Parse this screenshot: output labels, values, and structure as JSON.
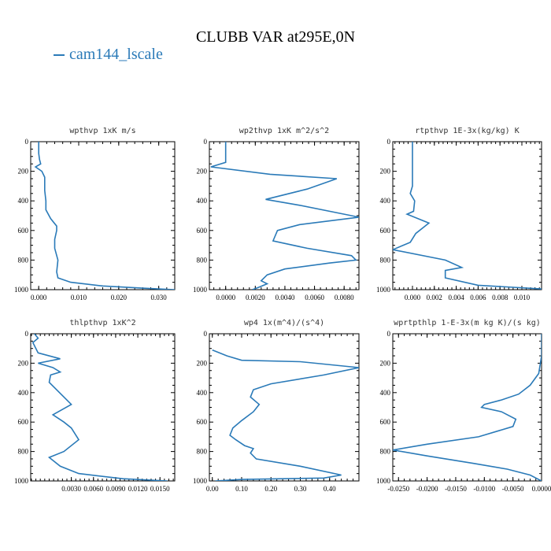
{
  "title": "CLUBB VAR at295E,0N",
  "legend": {
    "label": "cam144_lscale",
    "color": "#2a7ab8"
  },
  "chart_data": [
    {
      "type": "line",
      "title": "wpthvp  1xK m/s",
      "xlim": [
        -0.002,
        0.034
      ],
      "ylim": [
        1000,
        0
      ],
      "xticks": [
        0,
        0.01,
        0.02,
        0.03
      ],
      "xtick_labels": [
        "0.000",
        "0.010",
        "0.020",
        "0.030"
      ],
      "yticks": [
        0,
        200,
        400,
        600,
        800,
        1000
      ],
      "ytick_labels": [
        "0",
        "200",
        "400",
        "600",
        "800",
        "1000"
      ],
      "series": [
        {
          "x": [
            0,
            0,
            0.0002,
            0.0005,
            -0.0008,
            0.0008,
            0.0015,
            0.0015,
            0.0018,
            0.0018,
            0.003,
            0.0045,
            0.0045,
            0.004,
            0.004,
            0.0048,
            0.0045,
            0.0048,
            0.008,
            0.016,
            0.026,
            0.034
          ],
          "y": [
            0,
            80,
            120,
            150,
            170,
            200,
            240,
            330,
            400,
            460,
            520,
            570,
            600,
            660,
            720,
            800,
            880,
            920,
            950,
            975,
            990,
            1000
          ]
        }
      ]
    },
    {
      "type": "line",
      "title": "wp2thvp  1xK m^2/s^2",
      "xlim": [
        -0.0011,
        0.009
      ],
      "ylim": [
        1000,
        0
      ],
      "xticks": [
        0,
        0.002,
        0.004,
        0.006,
        0.008
      ],
      "xtick_labels": [
        "0.0000",
        "0.0020",
        "0.0040",
        "0.0060",
        "0.0080"
      ],
      "yticks": [
        0,
        200,
        400,
        600,
        800,
        1000
      ],
      "ytick_labels": [
        "0",
        "200",
        "400",
        "600",
        "800",
        "1000"
      ],
      "series": [
        {
          "x": [
            0,
            0,
            -0.001,
            0.003,
            0.0075,
            0.0055,
            0.0027,
            0.005,
            0.009,
            0.005,
            0.0035,
            0.0032,
            0.0055,
            0.0085,
            0.0088,
            0.007,
            0.004,
            0.0028,
            0.0024,
            0.0028,
            0.0022,
            0.0018
          ],
          "y": [
            0,
            140,
            170,
            220,
            250,
            320,
            390,
            430,
            510,
            560,
            600,
            670,
            720,
            770,
            800,
            820,
            860,
            900,
            940,
            960,
            985,
            1000
          ]
        }
      ]
    },
    {
      "type": "line",
      "title": "rtpthvp  1E-3x(kg/kg) K",
      "xlim": [
        -0.0018,
        0.0118
      ],
      "ylim": [
        1000,
        0
      ],
      "xticks": [
        0,
        0.002,
        0.004,
        0.006,
        0.008,
        0.01
      ],
      "xtick_labels": [
        "0.000",
        "0.002",
        "0.004",
        "0.006",
        "0.008",
        "0.010"
      ],
      "yticks": [
        0,
        200,
        400,
        600,
        800,
        1000
      ],
      "ytick_labels": [
        "0",
        "200",
        "400",
        "600",
        "800",
        "1000"
      ],
      "series": [
        {
          "x": [
            0,
            0,
            0,
            -0.0002,
            0.0002,
            0.0001,
            -0.0005,
            0.0015,
            0.0003,
            -0.0002,
            -0.0018,
            0.003,
            0.0045,
            0.003,
            0.003,
            0.006,
            0.0118
          ],
          "y": [
            0,
            150,
            300,
            350,
            400,
            470,
            490,
            550,
            620,
            680,
            730,
            800,
            850,
            870,
            920,
            970,
            995
          ]
        }
      ]
    },
    {
      "type": "line",
      "title": "thlpthvp  1xK^2",
      "xlim": [
        -0.0025,
        0.017
      ],
      "ylim": [
        1000,
        0
      ],
      "xticks": [
        0.003,
        0.006,
        0.009,
        0.012,
        0.015
      ],
      "xtick_labels": [
        "0.0030",
        "0.0060",
        "0.0090",
        "0.0120",
        "0.0150"
      ],
      "yticks": [
        0,
        200,
        400,
        600,
        800,
        1000
      ],
      "ytick_labels": [
        "0",
        "200",
        "400",
        "600",
        "800",
        "1000"
      ],
      "series": [
        {
          "x": [
            -0.002,
            -0.0015,
            -0.0022,
            -0.0015,
            0.0015,
            -0.0015,
            0.0005,
            0.0015,
            0.0002,
            0,
            0.003,
            0.0005,
            0.002,
            0.003,
            0.004,
            0.002,
            0,
            0.0015,
            0.004,
            0.01,
            0.016
          ],
          "y": [
            0,
            30,
            60,
            130,
            170,
            200,
            230,
            260,
            280,
            330,
            480,
            550,
            600,
            640,
            720,
            800,
            840,
            900,
            950,
            985,
            1000
          ]
        }
      ]
    },
    {
      "type": "line",
      "title": "wp4  1x(m^4)/(s^4)",
      "xlim": [
        -0.01,
        0.5
      ],
      "ylim": [
        1000,
        0
      ],
      "xticks": [
        0,
        0.1,
        0.2,
        0.3,
        0.4
      ],
      "xtick_labels": [
        "0.00",
        "0.10",
        "0.20",
        "0.30",
        "0.40"
      ],
      "yticks": [
        0,
        200,
        400,
        600,
        800,
        1000
      ],
      "ytick_labels": [
        "0",
        "200",
        "400",
        "600",
        "800",
        "1000"
      ],
      "series": [
        {
          "x": [
            0,
            0.05,
            0.1,
            0.3,
            0.5,
            0.38,
            0.2,
            0.14,
            0.13,
            0.16,
            0.14,
            0.1,
            0.07,
            0.06,
            0.08,
            0.11,
            0.14,
            0.13,
            0.15,
            0.3,
            0.44,
            0.38,
            0.1,
            0.01
          ],
          "y": [
            110,
            150,
            180,
            190,
            230,
            280,
            340,
            380,
            430,
            480,
            530,
            590,
            640,
            690,
            720,
            760,
            780,
            810,
            850,
            900,
            960,
            980,
            990,
            1000
          ]
        }
      ]
    },
    {
      "type": "line",
      "title": "wprtpthlp  1-E-3x(m kg K)/(s kg)",
      "xlim": [
        -0.026,
        0.0
      ],
      "ylim": [
        1000,
        0
      ],
      "xticks": [
        -0.025,
        -0.02,
        -0.015,
        -0.01,
        -0.005,
        0
      ],
      "xtick_labels": [
        "-0.0250",
        "-0.0200",
        "-0.0150",
        "-0.0100",
        "-0.0050",
        "0.0000"
      ],
      "yticks": [
        0,
        200,
        400,
        600,
        800,
        1000
      ],
      "ytick_labels": [
        "0",
        "200",
        "400",
        "600",
        "800",
        "1000"
      ],
      "series": [
        {
          "x": [
            0,
            0,
            -0.0005,
            -0.002,
            -0.004,
            -0.007,
            -0.01,
            -0.0105,
            -0.007,
            -0.0045,
            -0.005,
            -0.011,
            -0.02,
            -0.026,
            -0.02,
            -0.012,
            -0.006,
            -0.002,
            0
          ],
          "y": [
            0,
            150,
            270,
            350,
            410,
            450,
            480,
            500,
            530,
            580,
            630,
            700,
            750,
            790,
            830,
            880,
            920,
            960,
            1000
          ]
        }
      ]
    }
  ]
}
